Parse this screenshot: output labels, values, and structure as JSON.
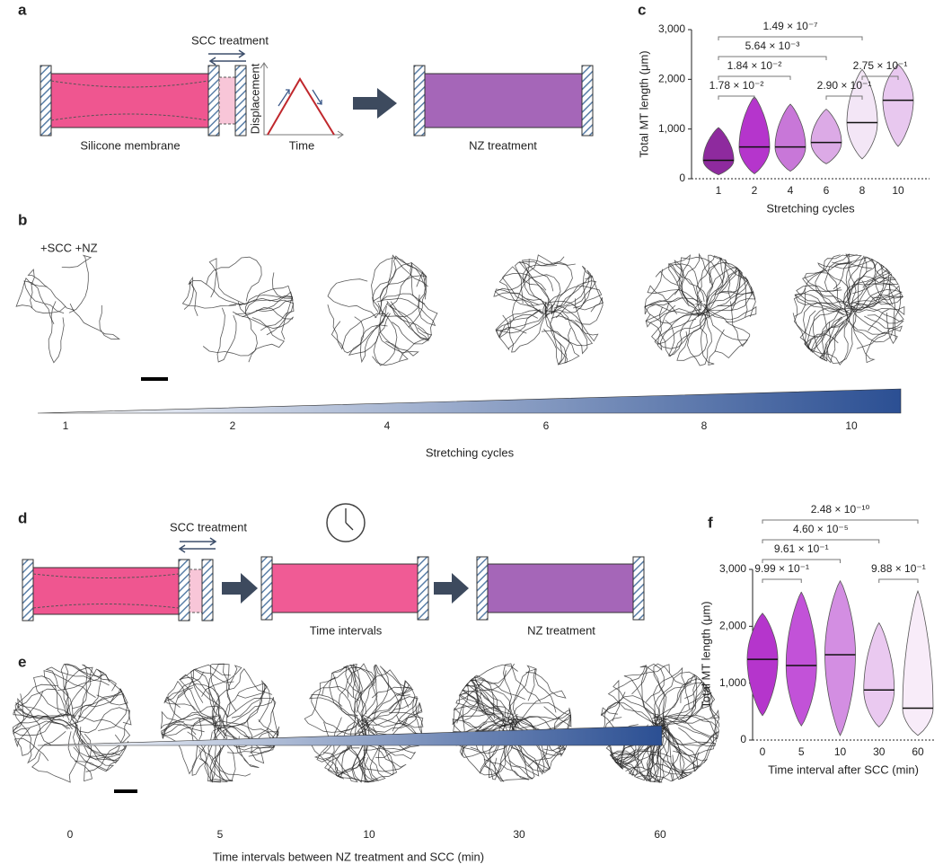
{
  "panel_a": {
    "letter": "a",
    "scc_label": "SCC treatment",
    "graph_ylabel": "Displacement",
    "graph_xlabel": "Time",
    "membrane_label": "Silicone membrane",
    "nz_label": "NZ treatment"
  },
  "panel_b": {
    "letter": "b",
    "condition": "+SCC +NZ",
    "ticks": [
      "1",
      "2",
      "4",
      "6",
      "8",
      "10"
    ],
    "axis_label": "Stretching cycles"
  },
  "panel_d": {
    "letter": "d",
    "scc_label": "SCC treatment",
    "interval_label": "Time intervals",
    "nz_label": "NZ treatment"
  },
  "panel_e": {
    "letter": "e",
    "ticks": [
      "0",
      "5",
      "10",
      "30",
      "60"
    ],
    "axis_label": "Time intervals between NZ treatment and SCC (min)"
  },
  "chart_data": [
    {
      "type": "violin",
      "panel": "c",
      "ylabel": "Total MT length (μm)",
      "xlabel": "Stretching cycles",
      "categories": [
        "1",
        "2",
        "4",
        "6",
        "8",
        "10"
      ],
      "median": [
        370,
        640,
        640,
        730,
        1130,
        1580
      ],
      "min": [
        80,
        100,
        150,
        300,
        400,
        650
      ],
      "max": [
        1030,
        1650,
        1500,
        1400,
        2200,
        2300
      ],
      "colors": [
        "#8e2a9e",
        "#b535cc",
        "#c877d8",
        "#dcaae6",
        "#f3e6f6",
        "#e8c8ef"
      ],
      "ylim": [
        0,
        3000
      ],
      "yticks": [
        0,
        {
          "value": 1000,
          "label": "1,000"
        },
        {
          "value": 2000,
          "label": "2,000"
        },
        {
          "value": 3000,
          "label": "3,000"
        }
      ],
      "comparisons": [
        {
          "between": [
            "1",
            "2"
          ],
          "label": "1.78 × 10⁻²"
        },
        {
          "between": [
            "6",
            "8"
          ],
          "label": "2.90 × 10⁻¹"
        },
        {
          "between": [
            "1",
            "4"
          ],
          "label": "1.84 × 10⁻²"
        },
        {
          "between": [
            "8",
            "10"
          ],
          "label": "2.75 × 10⁻¹"
        },
        {
          "between": [
            "1",
            "6"
          ],
          "label": "5.64 × 10⁻³"
        },
        {
          "between": [
            "1",
            "8"
          ],
          "label": "1.49 × 10⁻⁷"
        }
      ]
    },
    {
      "type": "violin",
      "panel": "f",
      "ylabel": "Total MT length (μm)",
      "xlabel": "Time interval after SCC (min)",
      "categories": [
        "0",
        "5",
        "10",
        "30",
        "60"
      ],
      "median": [
        1420,
        1310,
        1500,
        880,
        560
      ],
      "min": [
        430,
        250,
        80,
        230,
        80
      ],
      "max": [
        2230,
        2600,
        2800,
        2060,
        2620
      ],
      "colors": [
        "#b535cc",
        "#c252d8",
        "#d38ee2",
        "#eac9f0",
        "#f8ecf9"
      ],
      "ylim": [
        0,
        3000
      ],
      "yticks": [
        0,
        {
          "value": 1000,
          "label": "1,000"
        },
        {
          "value": 2000,
          "label": "2,000"
        },
        {
          "value": 3000,
          "label": "3,000"
        }
      ],
      "comparisons": [
        {
          "between": [
            "0",
            "5"
          ],
          "label": "9.99 × 10⁻¹"
        },
        {
          "between": [
            "30",
            "60"
          ],
          "label": "9.88 × 10⁻¹"
        },
        {
          "between": [
            "0",
            "10"
          ],
          "label": "9.61 × 10⁻¹"
        },
        {
          "between": [
            "0",
            "30"
          ],
          "label": "4.60 × 10⁻⁵"
        },
        {
          "between": [
            "0",
            "60"
          ],
          "label": "2.48 × 10⁻¹⁰"
        }
      ]
    }
  ]
}
